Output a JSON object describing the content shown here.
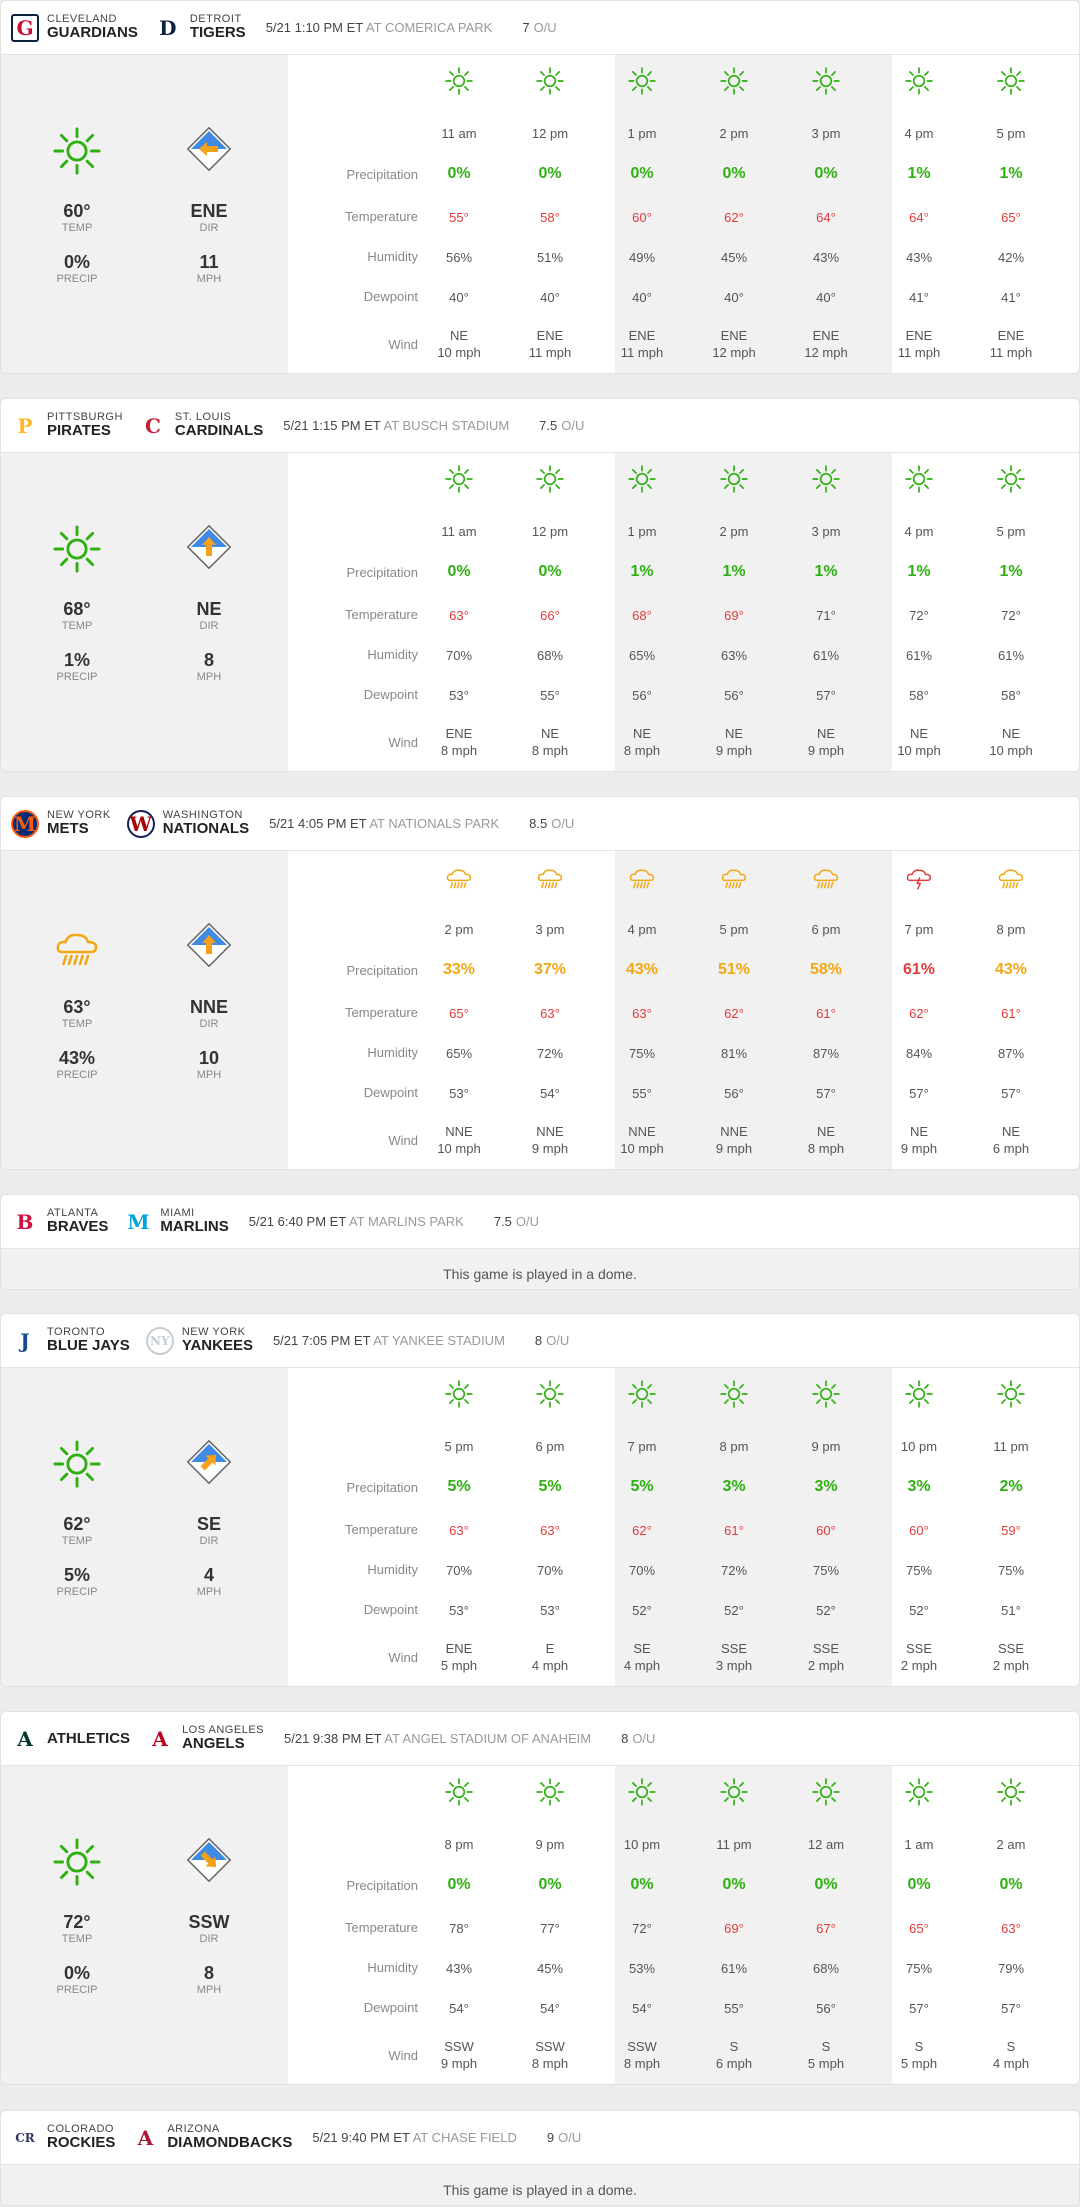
{
  "labels": {
    "temp": "TEMP",
    "dir": "DIR",
    "precip": "PRECIP",
    "mph": "MPH",
    "row_precip": "Precipitation",
    "row_temp": "Temperature",
    "row_humidity": "Humidity",
    "row_dewpoint": "Dewpoint",
    "row_wind": "Wind",
    "ou": "O/U"
  },
  "colors": {
    "green": "#2fb012",
    "yellow": "#f3a712",
    "red": "#e33b3b",
    "orange": "#f5a01a",
    "blue": "#2a7de1"
  },
  "games": [
    {
      "away": {
        "city": "CLEVELAND",
        "name": "GUARDIANS",
        "logo": "guardians-logo"
      },
      "home": {
        "city": "DETROIT",
        "name": "TIGERS",
        "logo": "tigers-logo"
      },
      "time": "5/21 1:10 PM ET",
      "venue": "AT COMERICA PARK",
      "ou": "7",
      "dome": false,
      "summary": {
        "icon": "sun-icon",
        "temp": "60°",
        "precip": "0%",
        "dir": "ENE",
        "mph": "11",
        "arrow_rot": 90
      },
      "hours": [
        {
          "t": "11 am",
          "icon": "sun",
          "precip": "0%",
          "temp": "55°",
          "hum": "56%",
          "dew": "40°",
          "wd": "NE",
          "ws": "10 mph"
        },
        {
          "t": "12 pm",
          "icon": "sun",
          "precip": "0%",
          "temp": "58°",
          "hum": "51%",
          "dew": "40°",
          "wd": "ENE",
          "ws": "11 mph"
        },
        {
          "t": "1 pm",
          "icon": "sun",
          "precip": "0%",
          "temp": "60°",
          "hum": "49%",
          "dew": "40°",
          "wd": "ENE",
          "ws": "11 mph"
        },
        {
          "t": "2 pm",
          "icon": "sun",
          "precip": "0%",
          "temp": "62°",
          "hum": "45%",
          "dew": "40°",
          "wd": "ENE",
          "ws": "12 mph"
        },
        {
          "t": "3 pm",
          "icon": "sun",
          "precip": "0%",
          "temp": "64°",
          "hum": "43%",
          "dew": "40°",
          "wd": "ENE",
          "ws": "12 mph"
        },
        {
          "t": "4 pm",
          "icon": "sun",
          "precip": "1%",
          "temp": "64°",
          "hum": "43%",
          "dew": "41°",
          "wd": "ENE",
          "ws": "11 mph"
        },
        {
          "t": "5 pm",
          "icon": "sun",
          "precip": "1%",
          "temp": "65°",
          "hum": "42%",
          "dew": "41°",
          "wd": "ENE",
          "ws": "11 mph"
        }
      ]
    },
    {
      "away": {
        "city": "PITTSBURGH",
        "name": "PIRATES",
        "logo": "pirates-logo"
      },
      "home": {
        "city": "ST. LOUIS",
        "name": "CARDINALS",
        "logo": "cardinals-logo"
      },
      "time": "5/21 1:15 PM ET",
      "venue": "AT BUSCH STADIUM",
      "ou": "7.5",
      "dome": false,
      "summary": {
        "icon": "sun-icon",
        "temp": "68°",
        "precip": "1%",
        "dir": "NE",
        "mph": "8",
        "arrow_rot": 180
      },
      "hours": [
        {
          "t": "11 am",
          "icon": "sun",
          "precip": "0%",
          "temp": "63°",
          "hum": "70%",
          "dew": "53°",
          "wd": "ENE",
          "ws": "8 mph"
        },
        {
          "t": "12 pm",
          "icon": "sun",
          "precip": "0%",
          "temp": "66°",
          "hum": "68%",
          "dew": "55°",
          "wd": "NE",
          "ws": "8 mph"
        },
        {
          "t": "1 pm",
          "icon": "sun",
          "precip": "1%",
          "temp": "68°",
          "hum": "65%",
          "dew": "56°",
          "wd": "NE",
          "ws": "8 mph"
        },
        {
          "t": "2 pm",
          "icon": "sun",
          "precip": "1%",
          "temp": "69°",
          "hum": "63%",
          "dew": "56°",
          "wd": "NE",
          "ws": "9 mph"
        },
        {
          "t": "3 pm",
          "icon": "sun",
          "precip": "1%",
          "temp": "71°",
          "hum": "61%",
          "dew": "57°",
          "wd": "NE",
          "ws": "9 mph"
        },
        {
          "t": "4 pm",
          "icon": "sun",
          "precip": "1%",
          "temp": "72°",
          "hum": "61%",
          "dew": "58°",
          "wd": "NE",
          "ws": "10 mph"
        },
        {
          "t": "5 pm",
          "icon": "sun",
          "precip": "1%",
          "temp": "72°",
          "hum": "61%",
          "dew": "58°",
          "wd": "NE",
          "ws": "10 mph"
        }
      ]
    },
    {
      "away": {
        "city": "NEW YORK",
        "name": "METS",
        "logo": "mets-logo"
      },
      "home": {
        "city": "WASHINGTON",
        "name": "NATIONALS",
        "logo": "nationals-logo"
      },
      "time": "5/21 4:05 PM ET",
      "venue": "AT NATIONALS PARK",
      "ou": "8.5",
      "dome": false,
      "summary": {
        "icon": "rain-icon",
        "temp": "63°",
        "precip": "43%",
        "dir": "NNE",
        "mph": "10",
        "arrow_rot": 180
      },
      "hours": [
        {
          "t": "2 pm",
          "icon": "rain",
          "precip": "33%",
          "temp": "65°",
          "hum": "65%",
          "dew": "53°",
          "wd": "NNE",
          "ws": "10 mph"
        },
        {
          "t": "3 pm",
          "icon": "rain",
          "precip": "37%",
          "temp": "63°",
          "hum": "72%",
          "dew": "54°",
          "wd": "NNE",
          "ws": "9 mph"
        },
        {
          "t": "4 pm",
          "icon": "rain",
          "precip": "43%",
          "temp": "63°",
          "hum": "75%",
          "dew": "55°",
          "wd": "NNE",
          "ws": "10 mph"
        },
        {
          "t": "5 pm",
          "icon": "rain",
          "precip": "51%",
          "temp": "62°",
          "hum": "81%",
          "dew": "56°",
          "wd": "NNE",
          "ws": "9 mph"
        },
        {
          "t": "6 pm",
          "icon": "rain",
          "precip": "58%",
          "temp": "61°",
          "hum": "87%",
          "dew": "57°",
          "wd": "NE",
          "ws": "8 mph"
        },
        {
          "t": "7 pm",
          "icon": "storm",
          "precip": "61%",
          "temp": "62°",
          "hum": "84%",
          "dew": "57°",
          "wd": "NE",
          "ws": "9 mph"
        },
        {
          "t": "8 pm",
          "icon": "rain",
          "precip": "43%",
          "temp": "61°",
          "hum": "87%",
          "dew": "57°",
          "wd": "NE",
          "ws": "6 mph"
        }
      ]
    },
    {
      "away": {
        "city": "ATLANTA",
        "name": "BRAVES",
        "logo": "braves-logo"
      },
      "home": {
        "city": "MIAMI",
        "name": "MARLINS",
        "logo": "marlins-logo"
      },
      "time": "5/21 6:40 PM ET",
      "venue": "AT MARLINS PARK",
      "ou": "7.5",
      "dome": true,
      "dome_text": "This game is played in a dome."
    },
    {
      "away": {
        "city": "TORONTO",
        "name": "BLUE JAYS",
        "logo": "bluejays-logo"
      },
      "home": {
        "city": "NEW YORK",
        "name": "YANKEES",
        "logo": "yankees-logo"
      },
      "time": "5/21 7:05 PM ET",
      "venue": "AT YANKEE STADIUM",
      "ou": "8",
      "dome": false,
      "summary": {
        "icon": "sun-icon",
        "temp": "62°",
        "precip": "5%",
        "dir": "SE",
        "mph": "4",
        "arrow_rot": 225
      },
      "hours": [
        {
          "t": "5 pm",
          "icon": "sun",
          "precip": "5%",
          "temp": "63°",
          "hum": "70%",
          "dew": "53°",
          "wd": "ENE",
          "ws": "5 mph"
        },
        {
          "t": "6 pm",
          "icon": "sun",
          "precip": "5%",
          "temp": "63°",
          "hum": "70%",
          "dew": "53°",
          "wd": "E",
          "ws": "4 mph"
        },
        {
          "t": "7 pm",
          "icon": "sun",
          "precip": "5%",
          "temp": "62°",
          "hum": "70%",
          "dew": "52°",
          "wd": "SE",
          "ws": "4 mph"
        },
        {
          "t": "8 pm",
          "icon": "sun",
          "precip": "3%",
          "temp": "61°",
          "hum": "72%",
          "dew": "52°",
          "wd": "SSE",
          "ws": "3 mph"
        },
        {
          "t": "9 pm",
          "icon": "sun",
          "precip": "3%",
          "temp": "60°",
          "hum": "75%",
          "dew": "52°",
          "wd": "SSE",
          "ws": "2 mph"
        },
        {
          "t": "10 pm",
          "icon": "sun",
          "precip": "3%",
          "temp": "60°",
          "hum": "75%",
          "dew": "52°",
          "wd": "SSE",
          "ws": "2 mph"
        },
        {
          "t": "11 pm",
          "icon": "sun",
          "precip": "2%",
          "temp": "59°",
          "hum": "75%",
          "dew": "51°",
          "wd": "SSE",
          "ws": "2 mph"
        }
      ]
    },
    {
      "away": {
        "city": "",
        "name": "ATHLETICS",
        "logo": "athletics-logo"
      },
      "home": {
        "city": "LOS ANGELES",
        "name": "ANGELS",
        "logo": "angels-logo"
      },
      "time": "5/21 9:38 PM ET",
      "venue": "AT ANGEL STADIUM OF ANAHEIM",
      "ou": "8",
      "dome": false,
      "summary": {
        "icon": "sun-icon",
        "temp": "72°",
        "precip": "0%",
        "dir": "SSW",
        "mph": "8",
        "arrow_rot": 315
      },
      "hours": [
        {
          "t": "8 pm",
          "icon": "sun",
          "precip": "0%",
          "temp": "78°",
          "hum": "43%",
          "dew": "54°",
          "wd": "SSW",
          "ws": "9 mph"
        },
        {
          "t": "9 pm",
          "icon": "sun",
          "precip": "0%",
          "temp": "77°",
          "hum": "45%",
          "dew": "54°",
          "wd": "SSW",
          "ws": "8 mph"
        },
        {
          "t": "10 pm",
          "icon": "sun",
          "precip": "0%",
          "temp": "72°",
          "hum": "53%",
          "dew": "54°",
          "wd": "SSW",
          "ws": "8 mph"
        },
        {
          "t": "11 pm",
          "icon": "sun",
          "precip": "0%",
          "temp": "69°",
          "hum": "61%",
          "dew": "55°",
          "wd": "S",
          "ws": "6 mph"
        },
        {
          "t": "12 am",
          "icon": "sun",
          "precip": "0%",
          "temp": "67°",
          "hum": "68%",
          "dew": "56°",
          "wd": "S",
          "ws": "5 mph"
        },
        {
          "t": "1 am",
          "icon": "sun",
          "precip": "0%",
          "temp": "65°",
          "hum": "75%",
          "dew": "57°",
          "wd": "S",
          "ws": "5 mph"
        },
        {
          "t": "2 am",
          "icon": "sun",
          "precip": "0%",
          "temp": "63°",
          "hum": "79%",
          "dew": "57°",
          "wd": "S",
          "ws": "4 mph"
        }
      ]
    },
    {
      "away": {
        "city": "COLORADO",
        "name": "ROCKIES",
        "logo": "rockies-logo"
      },
      "home": {
        "city": "ARIZONA",
        "name": "DIAMONDBACKS",
        "logo": "diamondbacks-logo"
      },
      "time": "5/21 9:40 PM ET",
      "venue": "AT CHASE FIELD",
      "ou": "9",
      "dome": true,
      "dome_text": "This game is played in a dome."
    }
  ]
}
